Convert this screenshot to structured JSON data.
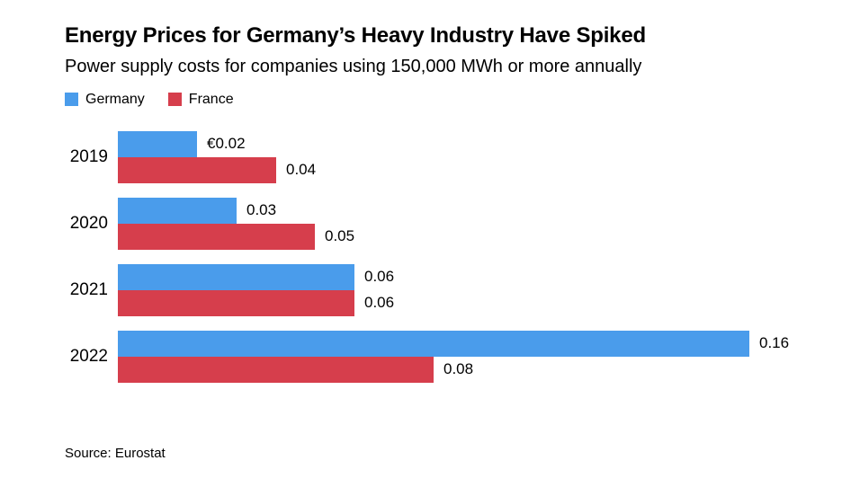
{
  "chart_data": {
    "type": "bar",
    "orientation": "horizontal",
    "title": "Energy Prices for Germany’s Heavy Industry Have Spiked",
    "subtitle": "Power supply costs for companies using 150,000 MWh or more annually",
    "source": "Source: Eurostat",
    "categories": [
      "2019",
      "2020",
      "2021",
      "2022"
    ],
    "series": [
      {
        "name": "Germany",
        "color": "#4A9CEB",
        "values": [
          0.02,
          0.03,
          0.06,
          0.16
        ],
        "labels": [
          "€0.02",
          "0.03",
          "0.06",
          "0.16"
        ]
      },
      {
        "name": "France",
        "color": "#D63E4C",
        "values": [
          0.04,
          0.05,
          0.06,
          0.08
        ],
        "labels": [
          "0.04",
          "0.05",
          "0.06",
          "0.08"
        ]
      }
    ],
    "xlim": [
      0,
      0.16
    ],
    "grid": false,
    "axis_lines": false,
    "legend_position": "top-left"
  }
}
